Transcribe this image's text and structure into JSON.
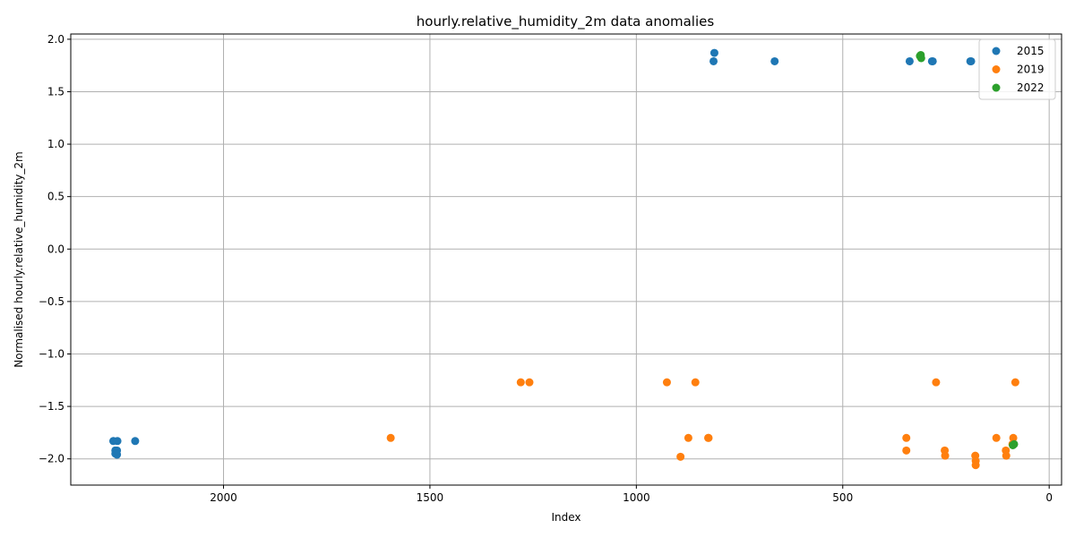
{
  "chart_data": {
    "type": "scatter",
    "title": "hourly.relative_humidity_2m data anomalies",
    "xlabel": "Index",
    "ylabel": "Normalised hourly.relative_humidity_2m",
    "xlim": [
      2370,
      -30
    ],
    "ylim": [
      -2.25,
      2.05
    ],
    "x_inverted": true,
    "grid": true,
    "legend": "top-right",
    "xticks": [
      2000,
      1500,
      1000,
      500,
      0
    ],
    "yticks": [
      2.0,
      1.5,
      1.0,
      0.5,
      0.0,
      -0.5,
      -1.0,
      -1.5,
      -2.0
    ],
    "xtick_labels": [
      "2000",
      "1500",
      "1000",
      "500",
      "0"
    ],
    "ytick_labels": [
      "2.0",
      "1.5",
      "1.0",
      "0.5",
      "0.0",
      "−0.5",
      "−1.0",
      "−1.5",
      "−2.0"
    ],
    "series": [
      {
        "name": "2015",
        "color": "#1f77b4",
        "points": [
          [
            2267,
            -1.83
          ],
          [
            2257,
            -1.83
          ],
          [
            2262,
            -1.92
          ],
          [
            2262,
            -1.95
          ],
          [
            2258,
            -1.92
          ],
          [
            2258,
            -1.96
          ],
          [
            2214,
            -1.83
          ],
          [
            811,
            1.87
          ],
          [
            813,
            1.79
          ],
          [
            665,
            1.79
          ],
          [
            338,
            1.79
          ],
          [
            284,
            1.79
          ],
          [
            282,
            1.79
          ],
          [
            191,
            1.79
          ],
          [
            189,
            1.79
          ]
        ]
      },
      {
        "name": "2019",
        "color": "#ff7f0e",
        "points": [
          [
            1595,
            -1.8
          ],
          [
            1280,
            -1.27
          ],
          [
            1259,
            -1.27
          ],
          [
            926,
            -1.27
          ],
          [
            857,
            -1.27
          ],
          [
            893,
            -1.98
          ],
          [
            874,
            -1.8
          ],
          [
            826,
            -1.8
          ],
          [
            825,
            -1.8
          ],
          [
            346,
            -1.8
          ],
          [
            346,
            -1.92
          ],
          [
            274,
            -1.27
          ],
          [
            253,
            -1.92
          ],
          [
            252,
            -1.97
          ],
          [
            179,
            -1.97
          ],
          [
            178,
            -2.02
          ],
          [
            178,
            -2.06
          ],
          [
            128,
            -1.8
          ],
          [
            87,
            -1.8
          ],
          [
            82,
            -1.27
          ],
          [
            105,
            -1.92
          ],
          [
            104,
            -1.97
          ],
          [
            89,
            -1.86
          ]
        ]
      },
      {
        "name": "2022",
        "color": "#2ca02c",
        "points": [
          [
            311,
            1.85
          ],
          [
            310,
            1.82
          ],
          [
            313,
            1.84
          ],
          [
            85,
            -1.86
          ],
          [
            88,
            -1.87
          ]
        ]
      }
    ]
  }
}
